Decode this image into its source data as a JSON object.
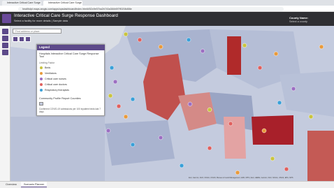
{
  "browser": {
    "tabs": [
      "Interactive Critical Care Surge Pl...",
      "Interactive Critical Care Surge Pl..."
    ],
    "url": "healthdpt.maps.arcgis.com/apps/opsdashboard/index.html#/52c9e57ba2b740a384b5f7ff0208d58e"
  },
  "header": {
    "title": "Interactive Critical Care Surge Response Dashboard",
    "subtitle": "Select a facility for more details | Sample data",
    "county_label": "County Name:",
    "county_value": "Select a county"
  },
  "map": {
    "search_placeholder": "Find address or place",
    "legend": {
      "title": "Legend",
      "layer": "Hospitals Interactive Critical Care Surge Response Tool",
      "group": "Limiting Factor",
      "items": [
        {
          "label": "Beds",
          "color": "#c9c43f"
        },
        {
          "label": "Ventilators",
          "color": "#e89a3c"
        },
        {
          "label": "Critical care nurses",
          "color": "#9c6fc2"
        },
        {
          "label": "Critical care doctors",
          "color": "#e0605e"
        },
        {
          "label": "Respiratory therapists",
          "color": "#3aa0d8"
        }
      ],
      "layer2": "Community Profile Report Counties",
      "layer2_desc": "Confirmed COVID-19 admissions per 100 inpatient beds last 7 days"
    },
    "attribution": "Esri, Garmin, FAO, NOAA, USGS, Bureau of Land Management, EPA, NPS | Esri, HERE, Garmin, FAO, NOAA, USGS, EPA, NPS"
  },
  "footer": {
    "tabs": [
      "Overview",
      "Scenario Planner"
    ]
  }
}
